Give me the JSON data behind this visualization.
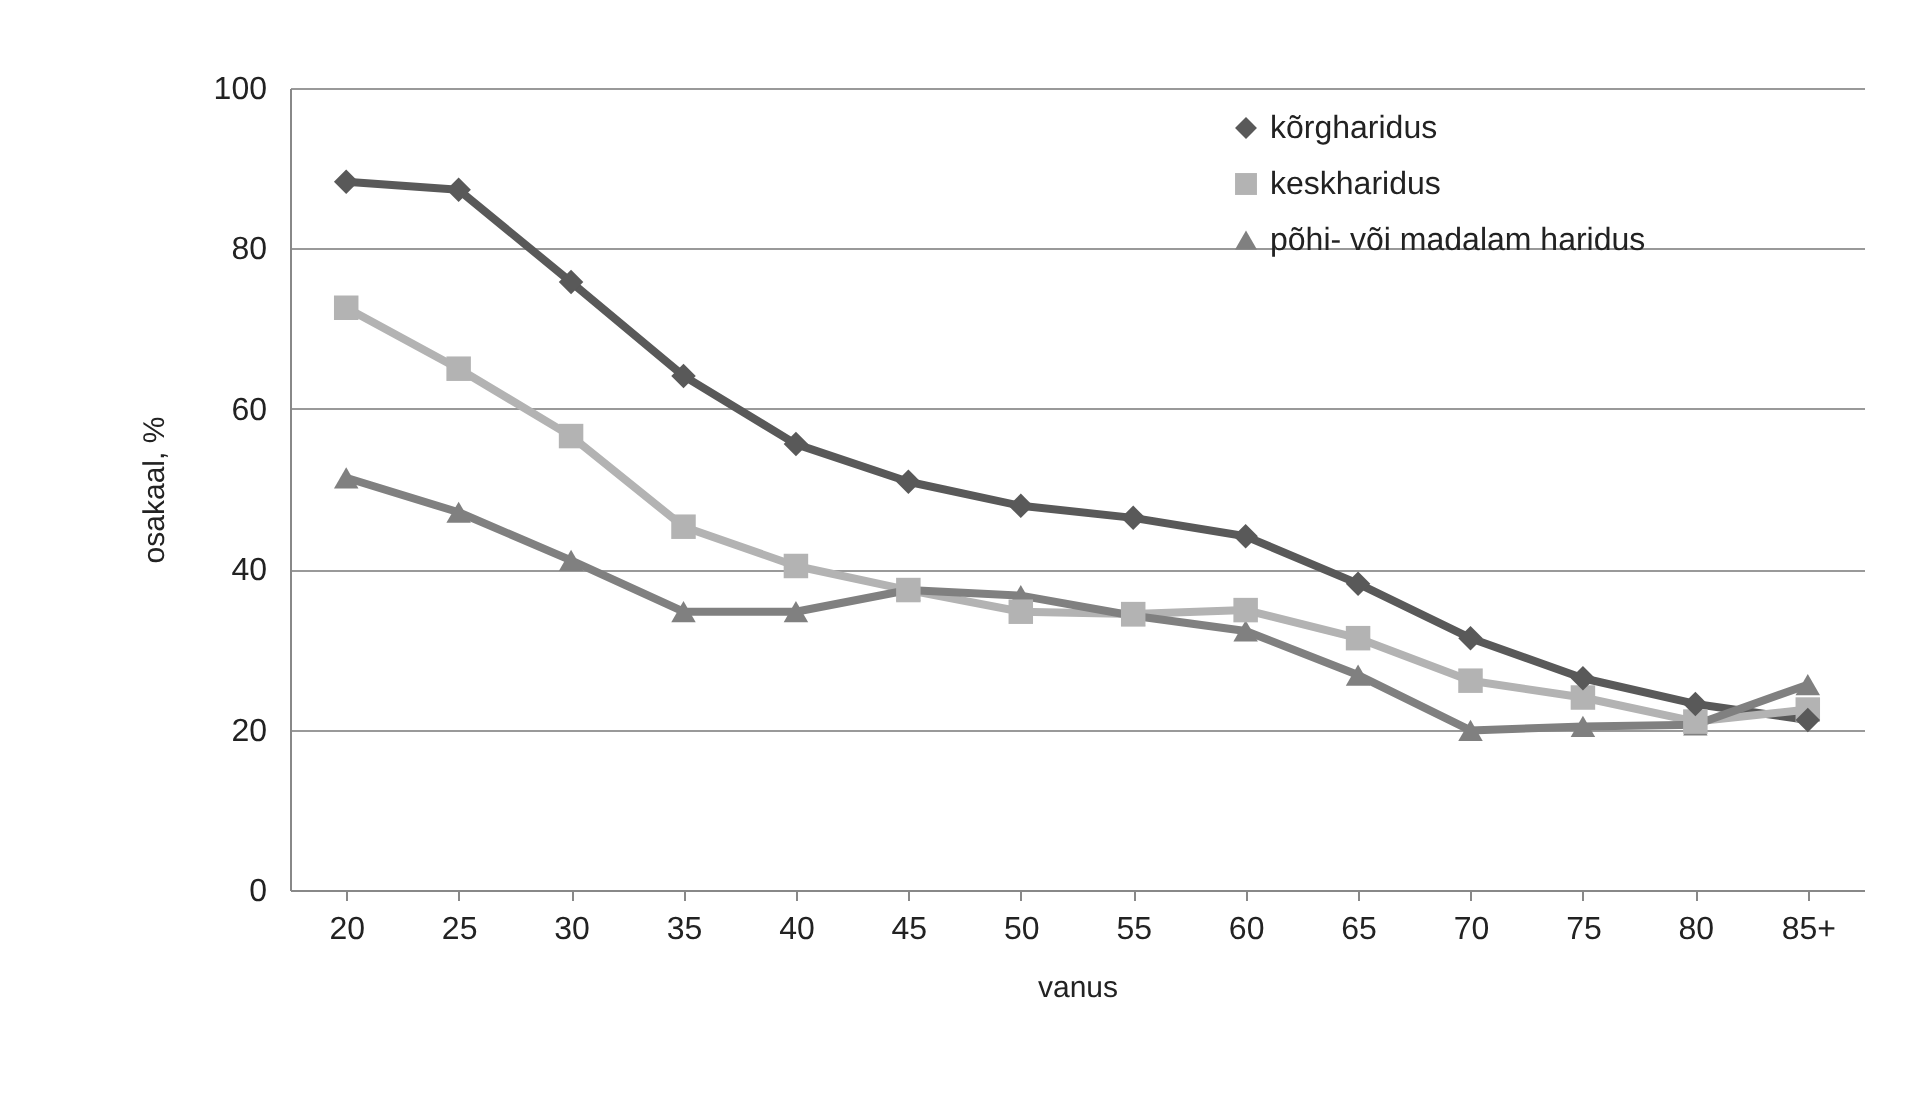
{
  "chart_data": {
    "type": "line",
    "xlabel": "vanus",
    "ylabel": "osakaal, %",
    "categories": [
      "20",
      "25",
      "30",
      "35",
      "40",
      "45",
      "50",
      "55",
      "60",
      "65",
      "70",
      "75",
      "80",
      "85+"
    ],
    "series": [
      {
        "name": "kõrgharidus",
        "color": "#595959",
        "marker": "diamond",
        "values": [
          88.3,
          87.3,
          75.8,
          64.1,
          55.6,
          50.9,
          47.9,
          46.4,
          44.1,
          38.2,
          31.4,
          26.4,
          23.2,
          21.2
        ]
      },
      {
        "name": "keskharidus",
        "color": "#b3b3b3",
        "marker": "square",
        "values": [
          72.6,
          65.0,
          56.6,
          45.3,
          40.4,
          37.4,
          34.7,
          34.4,
          34.9,
          31.4,
          26.1,
          24.0,
          21.0,
          22.5
        ]
      },
      {
        "name": "põhi- või madalam haridus",
        "color": "#808080",
        "marker": "triangle",
        "values": [
          51.4,
          47.1,
          41.1,
          34.7,
          34.7,
          37.4,
          36.7,
          34.2,
          32.3,
          26.8,
          19.9,
          20.4,
          20.6,
          25.6
        ]
      }
    ],
    "ylim": [
      0,
      100
    ],
    "yticks": [
      0,
      20,
      40,
      60,
      80,
      100
    ],
    "grid": "y",
    "legend": "top right",
    "line_style": "solid"
  }
}
